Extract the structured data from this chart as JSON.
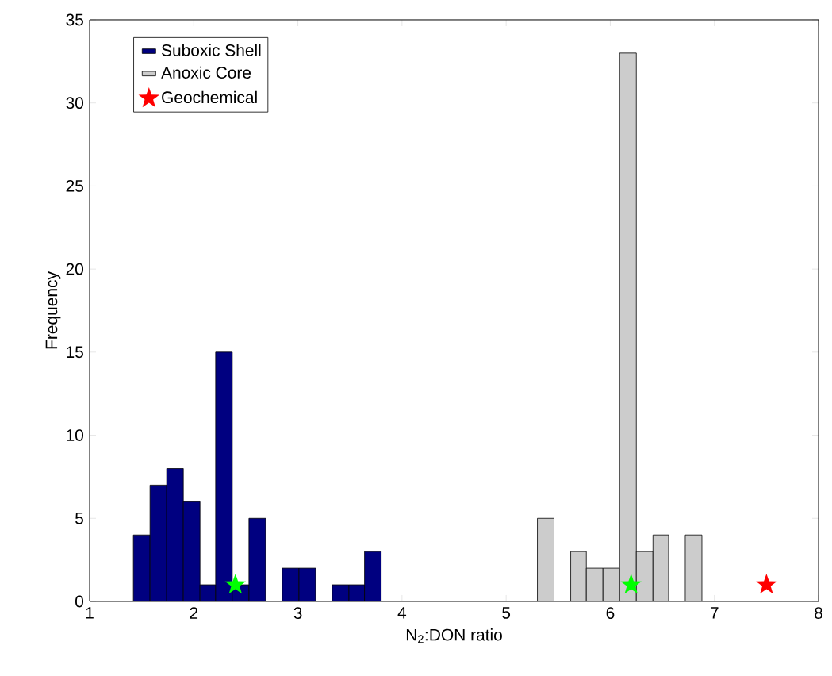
{
  "chart_data": {
    "type": "histogram",
    "xlabel": "N$_{2}$:DON ratio",
    "ylabel": "Frequency",
    "xlim": [
      1,
      8
    ],
    "xticks": [
      1,
      2,
      3,
      4,
      5,
      6,
      7,
      8
    ],
    "ylim": [
      0,
      35
    ],
    "yticks": [
      0,
      5,
      10,
      15,
      20,
      25,
      30,
      35
    ],
    "legend": "top left",
    "grid": false,
    "series": [
      {
        "name": "Suboxic Shell",
        "color": "#000080",
        "bins": [
          1.42,
          1.58,
          1.74,
          1.9,
          2.06,
          2.21,
          2.37,
          2.53,
          2.69,
          2.85,
          3.01,
          3.17,
          3.33,
          3.49,
          3.64,
          3.8
        ],
        "values": [
          4,
          7,
          8,
          6,
          1,
          15,
          1,
          5,
          0,
          2,
          2,
          0,
          1,
          1,
          3
        ]
      },
      {
        "name": "Anoxic Core",
        "color": "#cccccc",
        "bins": [
          5.3,
          5.46,
          5.62,
          5.77,
          5.93,
          6.09,
          6.25,
          6.41,
          6.56,
          6.72,
          6.88
        ],
        "values": [
          5,
          0,
          3,
          2,
          2,
          33,
          3,
          4,
          0,
          4
        ]
      },
      {
        "name": "Geochemical",
        "type": "scatter",
        "marker": "star",
        "color": "#ff0000",
        "x": [
          7.5
        ],
        "values": [
          1
        ]
      },
      {
        "type": "scatter",
        "marker": "star",
        "color": "#00ff00",
        "x": [
          2.4,
          6.2
        ],
        "values": [
          1,
          1
        ]
      }
    ]
  }
}
